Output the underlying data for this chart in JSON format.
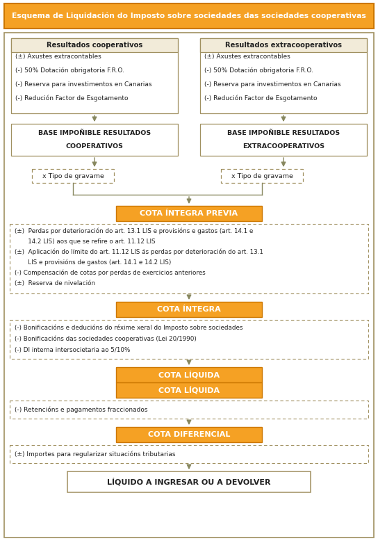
{
  "title": "Esquema de Liquidación do Imposto sobre sociedades das sociedades cooperativas",
  "orange_color": "#F5A124",
  "border_solid": "#A09060",
  "border_dashed": "#A09060",
  "arrow_color": "#888860",
  "text_color": "#222222",
  "bg_title_header": "#F0E8D0",
  "left_box1_title": "Resultados cooperativos",
  "left_box1_lines": [
    "(±) Axustes extracontables",
    "(-) 50% Dotación obrigatoria F.R.O.",
    "(-) Reserva para investimentos en Canarias",
    "(-) Redución Factor de Esgotamento"
  ],
  "right_box1_title": "Resultados extracooperativos",
  "right_box1_lines": [
    "(±) Axustes extracontables",
    "(-) 50% Dotación obrigatoria F.R.O.",
    "(-) Reserva para investimentos en Canarias",
    "(-) Redución Factor de Esgotamento"
  ],
  "left_box2_lines": [
    "BASE IMPOÑIBLE RESULTADOS",
    "COOPERATIVOS"
  ],
  "right_box2_lines": [
    "BASE IMPOÑIBLE RESULTADOS",
    "EXTRACOOPERATIVOS"
  ],
  "tipo_gravame": "x Tipo de gravame",
  "cota_integra_previa": "COTA ÍNTEGRA PREVIA",
  "cota_integra_previa_box_lines": [
    "(±)  Perdas por deterioración do art. 13.1 LIS e provisións e gastos (art. 14.1 e",
    "       14.2 LIS) aos que se refire o art. 11.12 LIS",
    "(±)  Aplicación do límite do art. 11.12 LIS ás perdas por deterioración do art. 13.1",
    "       LIS e provisións de gastos (art. 14.1 e 14.2 LIS)",
    "(-) Compensación de cotas por perdas de exercicios anteriores",
    "(±)  Reserva de nivelación"
  ],
  "cota_integra": "COTA ÍNTEGRA",
  "cota_integra_box_lines": [
    "(-) Bonificacións e deducións do réxime xeral do Imposto sobre sociedades",
    "(-) Bonificacións das sociedades cooperativas (Lei 20/1990)",
    "(-) DI interna intersocietaria ao 5/10%"
  ],
  "cota_liquida1": "COTA LÍQUIDA",
  "cota_liquida2": "COTA LÍQUIDA",
  "cota_liquida_box_lines": [
    "(-) Retencións e pagamentos fraccionados"
  ],
  "cota_diferencial": "COTA DIFERENCIAL",
  "cota_diferencial_box_lines": [
    "(±) Importes para regularizar situacións tributarias"
  ],
  "liquido": "LÍQUIDO A INGRESAR OU A DEVOLVER"
}
